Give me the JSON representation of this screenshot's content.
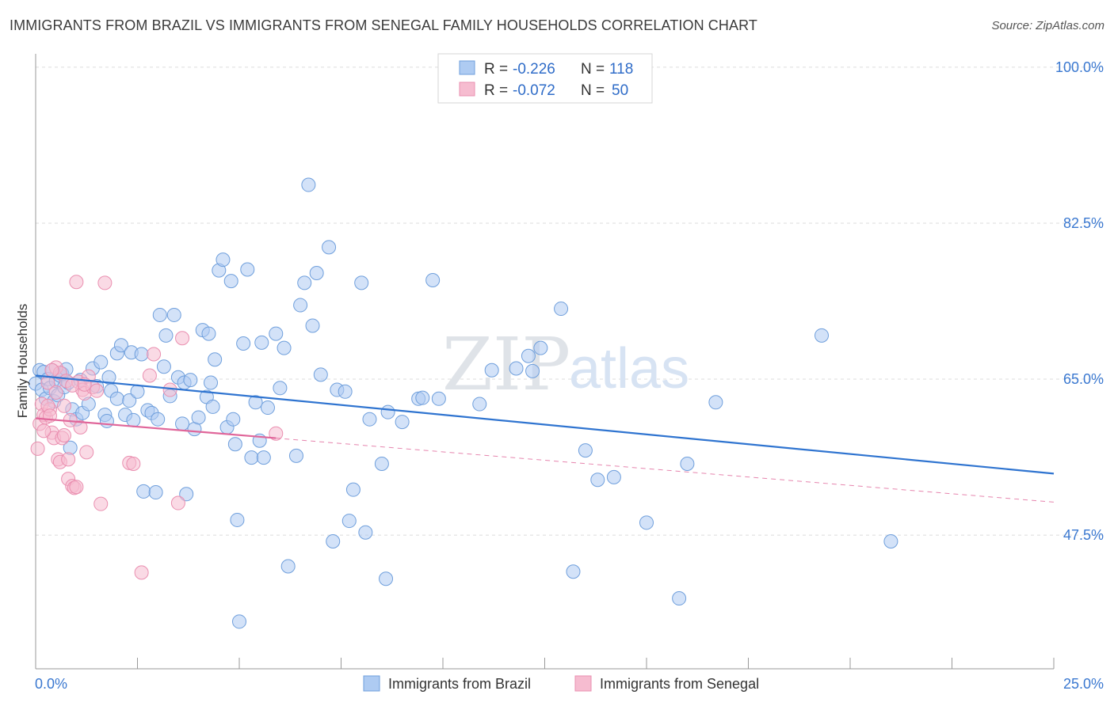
{
  "header": {
    "title": "IMMIGRANTS FROM BRAZIL VS IMMIGRANTS FROM SENEGAL FAMILY HOUSEHOLDS CORRELATION CHART",
    "source": "Source: ZipAtlas.com"
  },
  "colors": {
    "brazil_fill": "#aecbf2",
    "brazil_stroke": "#6f9fdc",
    "brazil_line": "#2f74d0",
    "senegal_fill": "#f6bcd0",
    "senegal_stroke": "#ea8fb0",
    "senegal_line": "#e0669a",
    "axis_value": "#3a78d0",
    "legend_value": "#2f6cc8"
  },
  "watermark": {
    "zip": "ZIP",
    "atlas": "atlas"
  },
  "chart_data": {
    "type": "scatter",
    "title": "IMMIGRANTS FROM BRAZIL VS IMMIGRANTS FROM SENEGAL FAMILY HOUSEHOLDS CORRELATION CHART",
    "xlabel": "",
    "ylabel": "Family Households",
    "xlim": [
      0,
      25
    ],
    "ylim": [
      32.5,
      101.5
    ],
    "x_tick_labels": [
      {
        "value": 0,
        "label": "0.0%"
      },
      {
        "value": 25,
        "label": "25.0%"
      }
    ],
    "y_tick_labels": [
      {
        "value": 100,
        "label": "100.0%"
      },
      {
        "value": 82.5,
        "label": "82.5%"
      },
      {
        "value": 65,
        "label": "65.0%"
      },
      {
        "value": 47.5,
        "label": "47.5%"
      }
    ],
    "grid": true,
    "legend_stats": [
      {
        "r_label": "R =",
        "r_value": "-0.226",
        "n_label": "N =",
        "n_value": "118"
      },
      {
        "r_label": "R =",
        "r_value": "-0.072",
        "n_label": "N =",
        "n_value": "50"
      }
    ],
    "series": [
      {
        "name": "Immigrants from Brazil",
        "trend": {
          "x": [
            0,
            25
          ],
          "y": [
            65.4,
            54.4
          ]
        },
        "points": [
          [
            0.0,
            64.5
          ],
          [
            0.1,
            66.0
          ],
          [
            0.15,
            63.8
          ],
          [
            0.2,
            65.8
          ],
          [
            0.25,
            62.8
          ],
          [
            0.3,
            65.0
          ],
          [
            0.35,
            64.0
          ],
          [
            0.4,
            66.0
          ],
          [
            0.45,
            62.5
          ],
          [
            0.5,
            64.8
          ],
          [
            0.55,
            63.2
          ],
          [
            0.6,
            65.4
          ],
          [
            0.65,
            65.6
          ],
          [
            0.7,
            64.1
          ],
          [
            0.75,
            66.1
          ],
          [
            0.8,
            64.6
          ],
          [
            0.85,
            57.3
          ],
          [
            0.9,
            61.6
          ],
          [
            1.0,
            60.5
          ],
          [
            1.1,
            64.9
          ],
          [
            1.15,
            61.2
          ],
          [
            1.3,
            62.2
          ],
          [
            1.4,
            66.2
          ],
          [
            1.5,
            64.2
          ],
          [
            1.6,
            66.9
          ],
          [
            1.7,
            61.0
          ],
          [
            1.75,
            60.3
          ],
          [
            1.8,
            65.2
          ],
          [
            1.85,
            63.7
          ],
          [
            2.0,
            67.9
          ],
          [
            2.1,
            68.8
          ],
          [
            2.0,
            62.8
          ],
          [
            2.2,
            61.0
          ],
          [
            2.3,
            62.6
          ],
          [
            2.35,
            68.0
          ],
          [
            2.4,
            60.4
          ],
          [
            2.5,
            63.6
          ],
          [
            2.6,
            67.8
          ],
          [
            2.65,
            52.4
          ],
          [
            2.75,
            61.5
          ],
          [
            2.85,
            61.2
          ],
          [
            2.95,
            52.3
          ],
          [
            3.0,
            60.5
          ],
          [
            3.05,
            72.2
          ],
          [
            3.15,
            66.4
          ],
          [
            3.2,
            69.9
          ],
          [
            3.3,
            63.1
          ],
          [
            3.4,
            72.2
          ],
          [
            3.5,
            65.2
          ],
          [
            3.6,
            60.0
          ],
          [
            3.65,
            64.6
          ],
          [
            3.7,
            52.1
          ],
          [
            3.8,
            64.9
          ],
          [
            3.9,
            59.4
          ],
          [
            4.0,
            60.7
          ],
          [
            4.1,
            70.5
          ],
          [
            4.2,
            63.0
          ],
          [
            4.25,
            70.1
          ],
          [
            4.3,
            64.6
          ],
          [
            4.35,
            61.9
          ],
          [
            4.4,
            67.2
          ],
          [
            4.5,
            77.2
          ],
          [
            4.6,
            78.4
          ],
          [
            4.7,
            59.6
          ],
          [
            4.8,
            76.0
          ],
          [
            4.85,
            60.5
          ],
          [
            4.9,
            57.7
          ],
          [
            4.95,
            49.2
          ],
          [
            5.0,
            37.8
          ],
          [
            5.1,
            69.0
          ],
          [
            5.2,
            77.3
          ],
          [
            5.3,
            56.2
          ],
          [
            5.4,
            62.4
          ],
          [
            5.5,
            58.1
          ],
          [
            5.55,
            69.1
          ],
          [
            5.6,
            56.2
          ],
          [
            5.7,
            61.8
          ],
          [
            5.9,
            70.1
          ],
          [
            6.0,
            64.0
          ],
          [
            6.1,
            68.5
          ],
          [
            6.2,
            44.0
          ],
          [
            6.4,
            56.4
          ],
          [
            6.5,
            73.3
          ],
          [
            6.6,
            75.8
          ],
          [
            6.7,
            86.8
          ],
          [
            6.8,
            71.0
          ],
          [
            6.9,
            76.9
          ],
          [
            7.0,
            65.5
          ],
          [
            7.2,
            79.8
          ],
          [
            7.3,
            46.8
          ],
          [
            7.4,
            63.8
          ],
          [
            7.6,
            63.6
          ],
          [
            7.7,
            49.1
          ],
          [
            7.8,
            52.6
          ],
          [
            8.0,
            75.8
          ],
          [
            8.1,
            47.8
          ],
          [
            8.2,
            60.5
          ],
          [
            8.5,
            55.5
          ],
          [
            8.6,
            42.6
          ],
          [
            8.65,
            61.3
          ],
          [
            9.0,
            60.2
          ],
          [
            9.4,
            62.8
          ],
          [
            9.5,
            62.9
          ],
          [
            9.75,
            76.1
          ],
          [
            9.9,
            62.8
          ],
          [
            10.9,
            62.2
          ],
          [
            11.2,
            66.0
          ],
          [
            11.8,
            66.2
          ],
          [
            12.1,
            67.6
          ],
          [
            12.2,
            65.9
          ],
          [
            12.4,
            68.5
          ],
          [
            12.9,
            72.9
          ],
          [
            13.2,
            43.4
          ],
          [
            13.5,
            57.0
          ],
          [
            13.8,
            53.7
          ],
          [
            14.2,
            54.0
          ],
          [
            15.0,
            48.9
          ],
          [
            15.8,
            40.4
          ],
          [
            16.0,
            55.5
          ],
          [
            16.7,
            62.4
          ],
          [
            19.3,
            69.9
          ],
          [
            21.0,
            46.8
          ]
        ]
      },
      {
        "name": "Immigrants from Senegal",
        "trend": {
          "x": [
            0,
            25
          ],
          "y": [
            60.6,
            51.2
          ]
        },
        "trend_solid_to_x": 5.9,
        "points": [
          [
            0.05,
            57.2
          ],
          [
            0.1,
            60.0
          ],
          [
            0.15,
            62.2
          ],
          [
            0.2,
            61.0
          ],
          [
            0.25,
            60.7
          ],
          [
            0.3,
            64.6
          ],
          [
            0.35,
            61.6
          ],
          [
            0.4,
            59.0
          ],
          [
            0.45,
            58.4
          ],
          [
            0.5,
            66.3
          ],
          [
            0.55,
            56.0
          ],
          [
            0.6,
            65.7
          ],
          [
            0.65,
            58.4
          ],
          [
            0.7,
            62.0
          ],
          [
            0.75,
            64.8
          ],
          [
            0.8,
            53.8
          ],
          [
            0.85,
            60.4
          ],
          [
            0.9,
            53.0
          ],
          [
            0.95,
            52.8
          ],
          [
            1.0,
            75.9
          ],
          [
            1.05,
            64.7
          ],
          [
            1.1,
            59.6
          ],
          [
            1.15,
            63.8
          ],
          [
            1.2,
            63.4
          ],
          [
            1.25,
            56.8
          ],
          [
            1.3,
            65.3
          ],
          [
            1.4,
            64.1
          ],
          [
            1.5,
            63.7
          ],
          [
            1.6,
            51.0
          ],
          [
            1.7,
            75.8
          ],
          [
            2.3,
            55.6
          ],
          [
            2.4,
            55.5
          ],
          [
            2.6,
            43.3
          ],
          [
            2.8,
            65.4
          ],
          [
            2.9,
            67.8
          ],
          [
            3.3,
            63.8
          ],
          [
            3.5,
            51.1
          ],
          [
            3.6,
            69.6
          ],
          [
            5.9,
            58.9
          ],
          [
            0.6,
            55.7
          ],
          [
            1.0,
            52.9
          ],
          [
            0.8,
            56.0
          ],
          [
            0.3,
            62.0
          ],
          [
            0.5,
            63.5
          ],
          [
            0.9,
            64.3
          ],
          [
            0.2,
            59.2
          ],
          [
            1.2,
            64.4
          ],
          [
            0.7,
            58.7
          ],
          [
            0.4,
            66.0
          ],
          [
            0.35,
            60.9
          ]
        ]
      }
    ]
  },
  "legend": {
    "items": [
      {
        "label": "Immigrants from Brazil"
      },
      {
        "label": "Immigrants from Senegal"
      }
    ]
  }
}
